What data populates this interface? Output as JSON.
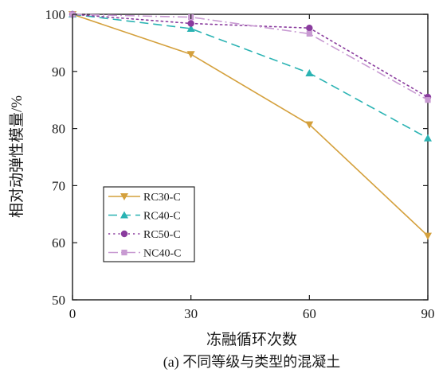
{
  "chart_data": {
    "type": "line",
    "xlabel": "冻融循环次数",
    "ylabel": "相对动弹性模量/%",
    "caption": "(a) 不同等级与类型的混凝土",
    "x": [
      0,
      30,
      60,
      90
    ],
    "xlim": [
      0,
      90
    ],
    "ylim": [
      50,
      100
    ],
    "xticks": [
      0,
      30,
      60,
      90
    ],
    "yticks": [
      50,
      60,
      70,
      80,
      90,
      100
    ],
    "grid": false,
    "legend_position": "lower-left",
    "series": [
      {
        "name": "RC30-C",
        "values": [
          100,
          93,
          80.7,
          61.2
        ],
        "color": "#d4a03c",
        "dash": "solid",
        "marker": "triangle-down"
      },
      {
        "name": "RC40-C",
        "values": [
          100,
          97.5,
          89.7,
          78.3
        ],
        "color": "#2ab3b3",
        "dash": "dashed",
        "marker": "triangle-up"
      },
      {
        "name": "RC50-C",
        "values": [
          100,
          98.4,
          97.6,
          85.5
        ],
        "color": "#8a3c9e",
        "dash": "dotted",
        "marker": "circle"
      },
      {
        "name": "NC40-C",
        "values": [
          100,
          99.5,
          96.6,
          85
        ],
        "color": "#c89ad2",
        "dash": "dashdot",
        "marker": "square"
      }
    ]
  }
}
